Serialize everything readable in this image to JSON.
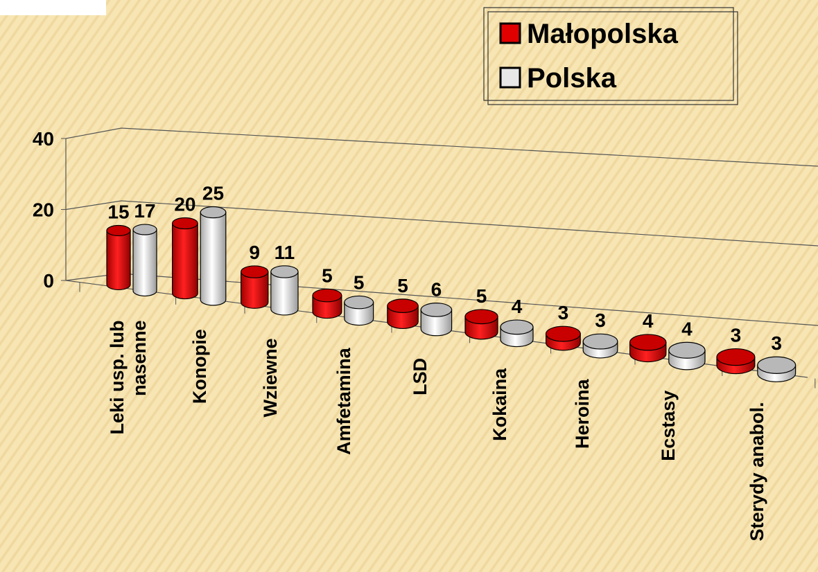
{
  "chart_data": {
    "type": "bar3d",
    "categories": [
      "Leki usp. lub nasenne",
      "Konopie",
      "Wziewne",
      "Amfetamina",
      "LSD",
      "Kokaina",
      "Heroina",
      "Ecstasy",
      "Sterydy anabol."
    ],
    "series": [
      {
        "name": "Małopolska",
        "color": "#e00000",
        "values": [
          15,
          20,
          9,
          5,
          5,
          5,
          3,
          4,
          3
        ]
      },
      {
        "name": "Polska",
        "color": "#d8d8d8",
        "values": [
          17,
          25,
          11,
          5,
          6,
          4,
          3,
          4,
          3
        ]
      }
    ],
    "ylim": [
      0,
      40
    ],
    "yticks": [
      0,
      20,
      40
    ],
    "grid": true,
    "legend": "top-right"
  }
}
